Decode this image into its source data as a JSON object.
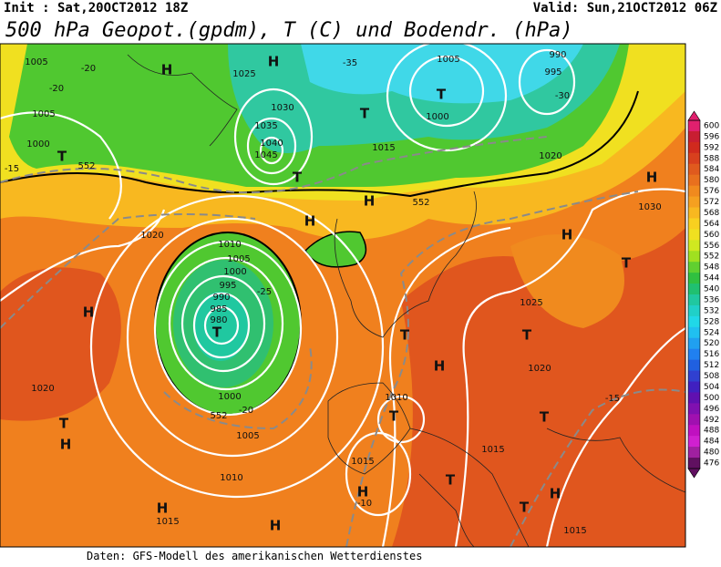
{
  "header": {
    "init": "Init : Sat,20OCT2012 18Z",
    "valid": "Valid: Sun,21OCT2012 06Z",
    "title": "500 hPa Geopot.(gpdm), T (C) und Bodendr. (hPa)"
  },
  "footer": "Daten: GFS-Modell des amerikanischen Wetterdienstes",
  "colorbar": {
    "levels": [
      600,
      596,
      592,
      588,
      584,
      580,
      576,
      572,
      568,
      564,
      560,
      556,
      552,
      548,
      544,
      540,
      536,
      532,
      528,
      524,
      520,
      516,
      512,
      508,
      504,
      500,
      496,
      492,
      488,
      484,
      480,
      476
    ],
    "colors": [
      "#e0206e",
      "#c81e32",
      "#d02a1e",
      "#d8401e",
      "#e05a1e",
      "#e8701e",
      "#f08a1e",
      "#f5a020",
      "#f8b820",
      "#f8d020",
      "#f0e020",
      "#d0e820",
      "#a0e020",
      "#60d030",
      "#30c040",
      "#20c070",
      "#20c8a0",
      "#20d0c8",
      "#20d8e8",
      "#20c0f0",
      "#20a0f0",
      "#2080f0",
      "#2060e0",
      "#3040d0",
      "#4020c0",
      "#6010b0",
      "#8010b0",
      "#a010b0",
      "#c010c0",
      "#d020d0",
      "#a020a0",
      "#601060"
    ]
  },
  "map_labels": [
    1005,
    -20,
    -20,
    "H",
    1025,
    "H",
    -35,
    1005,
    990,
    995,
    "T",
    1000,
    -30,
    1030,
    "T",
    1035,
    1040,
    1045,
    "T",
    1015,
    1020,
    1005,
    1000,
    "T",
    -15,
    "H",
    "H",
    1020,
    1010,
    1005,
    1000,
    995,
    990,
    985,
    980,
    "T",
    "H",
    "H",
    "T",
    "H",
    1030,
    1025,
    "T",
    1020,
    -15,
    1020,
    "T",
    "H",
    "T",
    1010,
    1015,
    1015,
    "T",
    "H",
    1010,
    "H",
    "T",
    "T",
    "H",
    "H",
    "H",
    1015,
    1015,
    1000,
    1005,
    "T",
    552,
    552,
    552,
    -25,
    -20,
    -10
  ]
}
